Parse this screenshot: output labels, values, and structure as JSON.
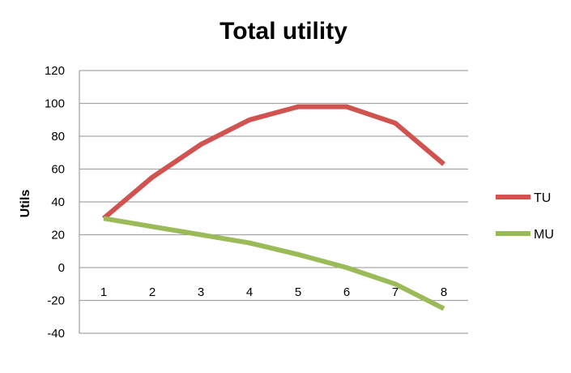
{
  "chart_data": {
    "type": "line",
    "title": "Total utility",
    "ylabel": "Utils",
    "xlabel": "",
    "x": [
      1,
      2,
      3,
      4,
      5,
      6,
      7,
      8
    ],
    "ylim": [
      -40,
      120
    ],
    "yticks": [
      120,
      100,
      80,
      60,
      40,
      20,
      0,
      -20,
      -40
    ],
    "grid": true,
    "legend": "right",
    "series": [
      {
        "name": "TU",
        "color": "#d0534f",
        "values": [
          30,
          55,
          75,
          90,
          98,
          98,
          88,
          63
        ]
      },
      {
        "name": "MU",
        "color": "#9bbb59",
        "values": [
          30,
          25,
          20,
          15,
          8,
          0,
          -10,
          -25
        ]
      }
    ]
  }
}
